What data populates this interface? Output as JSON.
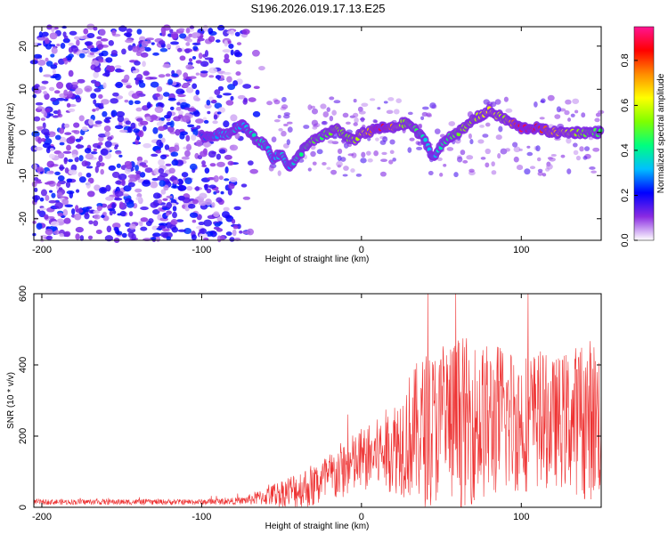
{
  "title": "S196.2026.019.17.13.E25",
  "chart_data": [
    {
      "type": "heatmap",
      "name": "spectrogram",
      "xlabel": "Height of straight line (km)",
      "ylabel": "Frequency (Hz)",
      "xlim": [
        -205,
        150
      ],
      "ylim": [
        -25,
        24.5
      ],
      "xticks": [
        -200,
        -100,
        0,
        100
      ],
      "yticks": [
        -20,
        -10,
        0,
        10,
        20
      ],
      "colorbar": {
        "label": "Normalized spectral amplitude",
        "range": [
          0.0,
          0.95
        ],
        "ticks": [
          0.0,
          0.2,
          0.4,
          0.6,
          0.8
        ],
        "tick_labels": [
          "0.0",
          "0.2",
          "0.4",
          "0.6",
          "0.8"
        ],
        "colormap": [
          "#ffffff",
          "#8a2be2",
          "#0000ff",
          "#00bfff",
          "#00ff7f",
          "#7fff00",
          "#ffff00",
          "#ff8c00",
          "#ff0000",
          "#ff1493"
        ]
      },
      "ridge": {
        "x": [
          -100,
          -80,
          -75,
          -70,
          -65,
          -60,
          -55,
          -50,
          -45,
          -40,
          -35,
          -30,
          -25,
          -20,
          -15,
          -10,
          -5,
          0,
          5,
          10,
          15,
          20,
          25,
          30,
          35,
          40,
          45,
          50,
          55,
          60,
          65,
          70,
          75,
          80,
          85,
          90,
          95,
          100,
          110,
          120,
          130,
          140,
          150
        ],
        "y": [
          -1,
          0,
          2,
          0,
          -2,
          -3,
          -6,
          -5,
          -8,
          -6,
          -3,
          -2,
          -1,
          0,
          1,
          -1,
          -2,
          0,
          0,
          1,
          1,
          1,
          2,
          2,
          0,
          -2,
          -6,
          -3,
          -1,
          0,
          1,
          3,
          4,
          5,
          4,
          3,
          2,
          1,
          1,
          0,
          0,
          0,
          0
        ],
        "amplitude": [
          0.25,
          0.35,
          0.3,
          0.35,
          0.4,
          0.35,
          0.3,
          0.35,
          0.3,
          0.4,
          0.45,
          0.5,
          0.45,
          0.5,
          0.55,
          0.5,
          0.55,
          0.6,
          0.7,
          0.9,
          0.85,
          0.7,
          0.55,
          0.5,
          0.45,
          0.35,
          0.3,
          0.4,
          0.45,
          0.5,
          0.55,
          0.55,
          0.6,
          0.65,
          0.6,
          0.55,
          0.75,
          0.9,
          0.85,
          0.7,
          0.6,
          0.5,
          0.45
        ]
      },
      "noise_region_x": [
        -205,
        -60
      ]
    },
    {
      "type": "line",
      "name": "snr",
      "xlabel": "Height of straight line (km)",
      "ylabel": "SNR (10 * v/v)",
      "xlim": [
        -205,
        150
      ],
      "ylim": [
        0,
        600
      ],
      "xticks": [
        -200,
        -100,
        0,
        100
      ],
      "yticks": [
        0,
        200,
        400,
        600
      ],
      "color": "#ee3333",
      "envelope": {
        "x": [
          -205,
          -100,
          -75,
          -60,
          -50,
          -40,
          -30,
          -20,
          -10,
          0,
          10,
          20,
          30,
          40,
          50,
          60,
          70,
          80,
          90,
          100,
          110,
          120,
          130,
          140,
          150
        ],
        "mean": [
          15,
          15,
          18,
          30,
          40,
          50,
          60,
          80,
          110,
          130,
          150,
          170,
          200,
          220,
          230,
          240,
          240,
          240,
          250,
          240,
          245,
          240,
          245,
          250,
          250
        ],
        "spread": [
          8,
          8,
          10,
          25,
          40,
          55,
          65,
          75,
          85,
          90,
          100,
          130,
          180,
          220,
          220,
          250,
          230,
          220,
          220,
          200,
          200,
          180,
          200,
          230,
          230
        ]
      }
    }
  ]
}
